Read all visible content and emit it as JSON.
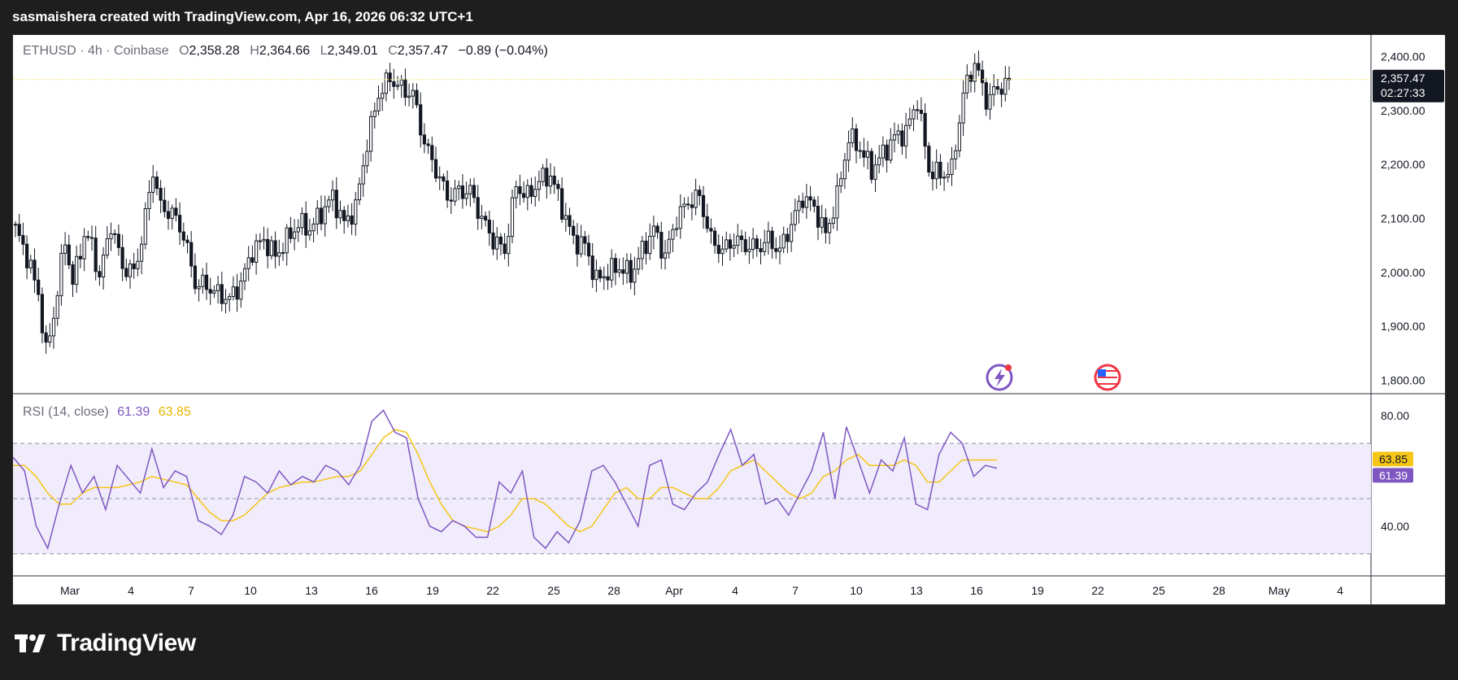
{
  "header": {
    "attribution": "sasmaishera created with TradingView.com, Apr 16, 2026 06:32 UTC+1"
  },
  "legend": {
    "symbol": "ETHUSD · 4h · Coinbase",
    "open_label": "O",
    "open": "2,358.28",
    "high_label": "H",
    "high": "2,364.66",
    "low_label": "L",
    "low": "2,349.01",
    "close_label": "C",
    "close": "2,357.47",
    "change": "−0.89 (−0.04%)"
  },
  "rsi_legend": {
    "label": "RSI (14, close)",
    "rsi_value": "61.39",
    "ma_value": "63.85"
  },
  "price_tag": {
    "price": "2,357.47",
    "countdown": "02:27:33"
  },
  "rsi_tags": {
    "ma": "63.85",
    "rsi": "61.39"
  },
  "brand": {
    "name": "TradingView"
  },
  "colors": {
    "up": "#131722",
    "down": "#131722",
    "rsi_line": "#7e57c2",
    "rsi_ma": "#f5c518",
    "rsi_band": "#f1ecfb",
    "last_price_line": "#f2e46a"
  },
  "icons": [
    "lightning-event-icon",
    "us-flag-event-icon"
  ],
  "chart_data": [
    {
      "type": "candlestick",
      "symbol": "ETHUSD",
      "interval": "4h",
      "exchange": "Coinbase",
      "y_ticks": [
        "2,400.00",
        "2,300.00",
        "2,200.00",
        "2,100.00",
        "2,000.00",
        "1,900.00",
        "1,800.00"
      ],
      "ylim": [
        1790,
        2425
      ],
      "x_ticks": [
        "Mar",
        "4",
        "7",
        "10",
        "13",
        "16",
        "19",
        "22",
        "25",
        "28",
        "Apr",
        "4",
        "7",
        "10",
        "13",
        "16",
        "19",
        "22",
        "25",
        "28",
        "May",
        "4"
      ],
      "last_price": 2357.47,
      "approx_close_path": [
        [
          0,
          2080
        ],
        [
          3,
          2030
        ],
        [
          6,
          1960
        ],
        [
          8,
          1850
        ],
        [
          10,
          1920
        ],
        [
          13,
          2060
        ],
        [
          15,
          1980
        ],
        [
          18,
          2070
        ],
        [
          20,
          2050
        ],
        [
          22,
          1990
        ],
        [
          25,
          2090
        ],
        [
          28,
          2010
        ],
        [
          31,
          2000
        ],
        [
          33,
          2060
        ],
        [
          36,
          2190
        ],
        [
          38,
          2120
        ],
        [
          41,
          2110
        ],
        [
          44,
          2070
        ],
        [
          47,
          1980
        ],
        [
          50,
          1975
        ],
        [
          53,
          1960
        ],
        [
          56,
          1950
        ],
        [
          59,
          1980
        ],
        [
          62,
          2040
        ],
        [
          65,
          2060
        ],
        [
          68,
          2030
        ],
        [
          71,
          2060
        ],
        [
          74,
          2090
        ],
        [
          77,
          2080
        ],
        [
          80,
          2110
        ],
        [
          83,
          2140
        ],
        [
          86,
          2090
        ],
        [
          89,
          2120
        ],
        [
          92,
          2240
        ],
        [
          95,
          2330
        ],
        [
          98,
          2360
        ],
        [
          101,
          2340
        ],
        [
          104,
          2330
        ],
        [
          107,
          2240
        ],
        [
          110,
          2190
        ],
        [
          113,
          2140
        ],
        [
          116,
          2150
        ],
        [
          119,
          2150
        ],
        [
          122,
          2100
        ],
        [
          125,
          2060
        ],
        [
          128,
          2040
        ],
        [
          131,
          2160
        ],
        [
          134,
          2140
        ],
        [
          137,
          2170
        ],
        [
          140,
          2180
        ],
        [
          143,
          2120
        ],
        [
          146,
          2060
        ],
        [
          149,
          2050
        ],
        [
          152,
          1985
        ],
        [
          155,
          2000
        ],
        [
          158,
          2010
        ],
        [
          161,
          1995
        ],
        [
          164,
          2040
        ],
        [
          167,
          2080
        ],
        [
          170,
          2030
        ],
        [
          173,
          2100
        ],
        [
          176,
          2130
        ],
        [
          179,
          2140
        ],
        [
          182,
          2060
        ],
        [
          185,
          2040
        ],
        [
          188,
          2060
        ],
        [
          191,
          2050
        ],
        [
          194,
          2045
        ],
        [
          197,
          2060
        ],
        [
          200,
          2040
        ],
        [
          203,
          2090
        ],
        [
          206,
          2140
        ],
        [
          209,
          2120
        ],
        [
          212,
          2070
        ],
        [
          215,
          2140
        ],
        [
          218,
          2250
        ],
        [
          221,
          2230
        ],
        [
          224,
          2190
        ],
        [
          227,
          2220
        ],
        [
          230,
          2250
        ],
        [
          233,
          2260
        ],
        [
          236,
          2320
        ],
        [
          239,
          2190
        ],
        [
          242,
          2180
        ],
        [
          245,
          2190
        ],
        [
          248,
          2330
        ],
        [
          251,
          2390
        ],
        [
          254,
          2320
        ],
        [
          257,
          2340
        ],
        [
          260,
          2357
        ]
      ]
    },
    {
      "type": "line",
      "title": "RSI (14, close)",
      "y_ticks": [
        "80.00",
        "40.00"
      ],
      "ylim": [
        22,
        88
      ],
      "bands": [
        30,
        50,
        70
      ],
      "series": [
        {
          "name": "RSI",
          "last": 61.39,
          "approx_values": [
            65,
            60,
            40,
            32,
            48,
            62,
            52,
            58,
            46,
            62,
            57,
            52,
            68,
            54,
            60,
            58,
            42,
            40,
            37,
            44,
            58,
            56,
            52,
            60,
            55,
            58,
            56,
            62,
            60,
            55,
            62,
            78,
            82,
            74,
            72,
            50,
            40,
            38,
            42,
            40,
            36,
            36,
            56,
            52,
            60,
            36,
            32,
            38,
            34,
            42,
            60,
            62,
            56,
            48,
            40,
            62,
            64,
            48,
            46,
            52,
            56,
            66,
            75,
            62,
            66,
            48,
            50,
            44,
            52,
            60,
            74,
            50,
            76,
            64,
            52,
            64,
            60,
            72,
            48,
            46,
            66,
            74,
            70,
            58,
            62,
            61
          ]
        },
        {
          "name": "RSI-based MA",
          "last": 63.85,
          "approx_values": [
            62,
            62,
            58,
            52,
            48,
            48,
            52,
            54,
            54,
            54,
            55,
            56,
            58,
            57,
            56,
            55,
            50,
            45,
            42,
            42,
            44,
            48,
            52,
            54,
            55,
            56,
            56,
            57,
            58,
            58,
            60,
            66,
            72,
            75,
            74,
            66,
            56,
            48,
            42,
            40,
            39,
            38,
            40,
            44,
            50,
            50,
            48,
            44,
            40,
            38,
            40,
            46,
            52,
            54,
            50,
            50,
            54,
            54,
            52,
            50,
            50,
            54,
            60,
            62,
            64,
            60,
            56,
            52,
            50,
            52,
            58,
            60,
            64,
            66,
            62,
            62,
            62,
            64,
            62,
            56,
            56,
            60,
            64,
            64,
            64,
            64
          ]
        }
      ]
    }
  ]
}
